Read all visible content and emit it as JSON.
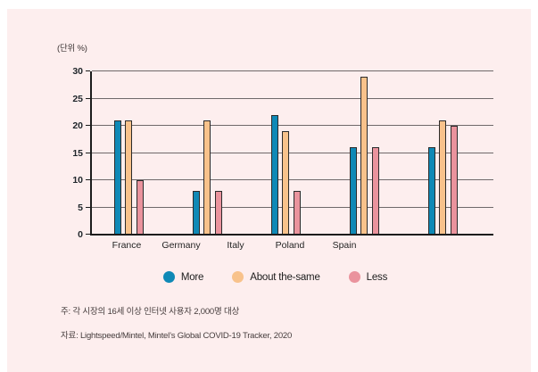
{
  "colors": {
    "panel_background": "#fdeeee",
    "axis": "#1c1c1c",
    "gridline": "#6f696a",
    "bar_outline": "#2b2b2b"
  },
  "unit_label": "(단위 %)",
  "chart_data": {
    "type": "bar",
    "categories": [
      "France",
      "Germany",
      "Italy",
      "Poland",
      "Spain"
    ],
    "series": [
      {
        "name": "More",
        "color": "#0f89b6",
        "values": [
          21,
          8,
          22,
          16,
          16
        ]
      },
      {
        "name": "About the-same",
        "color": "#f8c28b",
        "values": [
          21,
          21,
          19,
          29,
          21
        ]
      },
      {
        "name": "Less",
        "color": "#ea939d",
        "values": [
          10,
          8,
          8,
          16,
          20
        ]
      }
    ],
    "title": "",
    "xlabel": "",
    "ylabel": "(단위 %)",
    "ylim": [
      0,
      30
    ],
    "yticks": [
      0,
      5,
      10,
      15,
      20,
      25,
      30
    ],
    "grid": true,
    "legend_position": "bottom"
  },
  "notes": {
    "line1": "주: 각 시장의 16세 이상 인터넷 사용자 2,000명 대상",
    "line2": "자료: Lightspeed/Mintel, Mintel’s Global COVID-19 Tracker, 2020"
  }
}
